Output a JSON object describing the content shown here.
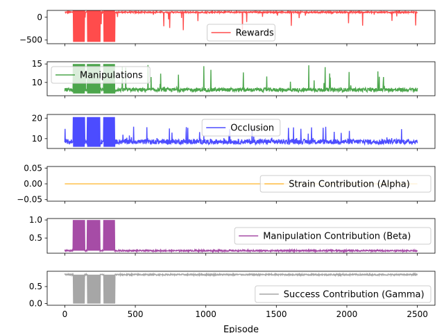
{
  "chart_data": {
    "type": "line",
    "xlabel": "Episode",
    "xlim": [
      -125,
      2625
    ],
    "x_ticks": [
      0,
      500,
      1000,
      1500,
      2000,
      2500
    ],
    "x_tick_labels": [
      "0",
      "500",
      "1000",
      "1500",
      "2000",
      "2500"
    ],
    "episodes": 2500,
    "subplots": [
      {
        "name": "Rewards",
        "color": "#ff0000",
        "ylim": [
          -580,
          150
        ],
        "y_ticks": [
          0,
          -500
        ],
        "y_tick_labels": [
          "0",
          "−500"
        ],
        "legend_loc": "lower-center",
        "baseline": 110,
        "noise": 15,
        "spike_low": -300,
        "spike_prob": 0.02,
        "burst_low": -540,
        "burst_high": 160
      },
      {
        "name": "Manipulations",
        "color": "#008000",
        "ylim": [
          6.4,
          15.6
        ],
        "y_ticks": [
          15,
          10
        ],
        "y_tick_labels": [
          "15",
          "10"
        ],
        "legend_loc": "upper-left",
        "baseline": 8,
        "noise": 0.5,
        "spike_high": 15,
        "spike_prob": 0.03,
        "burst_low": 7,
        "burst_high": 15
      },
      {
        "name": "Occlusion",
        "color": "#0000ff",
        "ylim": [
          5.2,
          21.8
        ],
        "y_ticks": [
          20,
          10
        ],
        "y_tick_labels": [
          "20",
          "10"
        ],
        "legend_loc": "upper-center",
        "baseline": 8.5,
        "noise": 1.2,
        "spike_high": 16,
        "spike_prob": 0.03,
        "burst_low": 6,
        "burst_high": 20.5
      },
      {
        "name": "Strain Contribution (Alpha)",
        "color": "#ffa500",
        "ylim": [
          -0.055,
          0.055
        ],
        "y_ticks": [
          0.05,
          0.0,
          -0.05
        ],
        "y_tick_labels": [
          "0.05",
          "0.00",
          "−0.05"
        ],
        "legend_loc": "center-right",
        "baseline": 0.0,
        "noise": 0.0
      },
      {
        "name": "Manipulation Contribution (Beta)",
        "color": "#800080",
        "ylim": [
          0.08,
          1.04
        ],
        "y_ticks": [
          1.0,
          0.5
        ],
        "y_tick_labels": [
          "1.0",
          "0.5"
        ],
        "legend_loc": "center-right",
        "baseline": 0.15,
        "noise": 0.02,
        "burst_low": 0.15,
        "burst_high": 1.0
      },
      {
        "name": "Success Contribution (Gamma)",
        "color": "#808080",
        "ylim": [
          -0.05,
          0.95
        ],
        "y_ticks": [
          0.5,
          0.0
        ],
        "y_tick_labels": [
          "0.5",
          "0.0"
        ],
        "legend_loc": "lower-right",
        "baseline": 0.85,
        "noise": 0.02,
        "burst_low": 0.0,
        "burst_high": 0.85
      }
    ],
    "burst_ranges": [
      [
        60,
        140
      ],
      [
        160,
        250
      ],
      [
        275,
        355
      ]
    ]
  }
}
